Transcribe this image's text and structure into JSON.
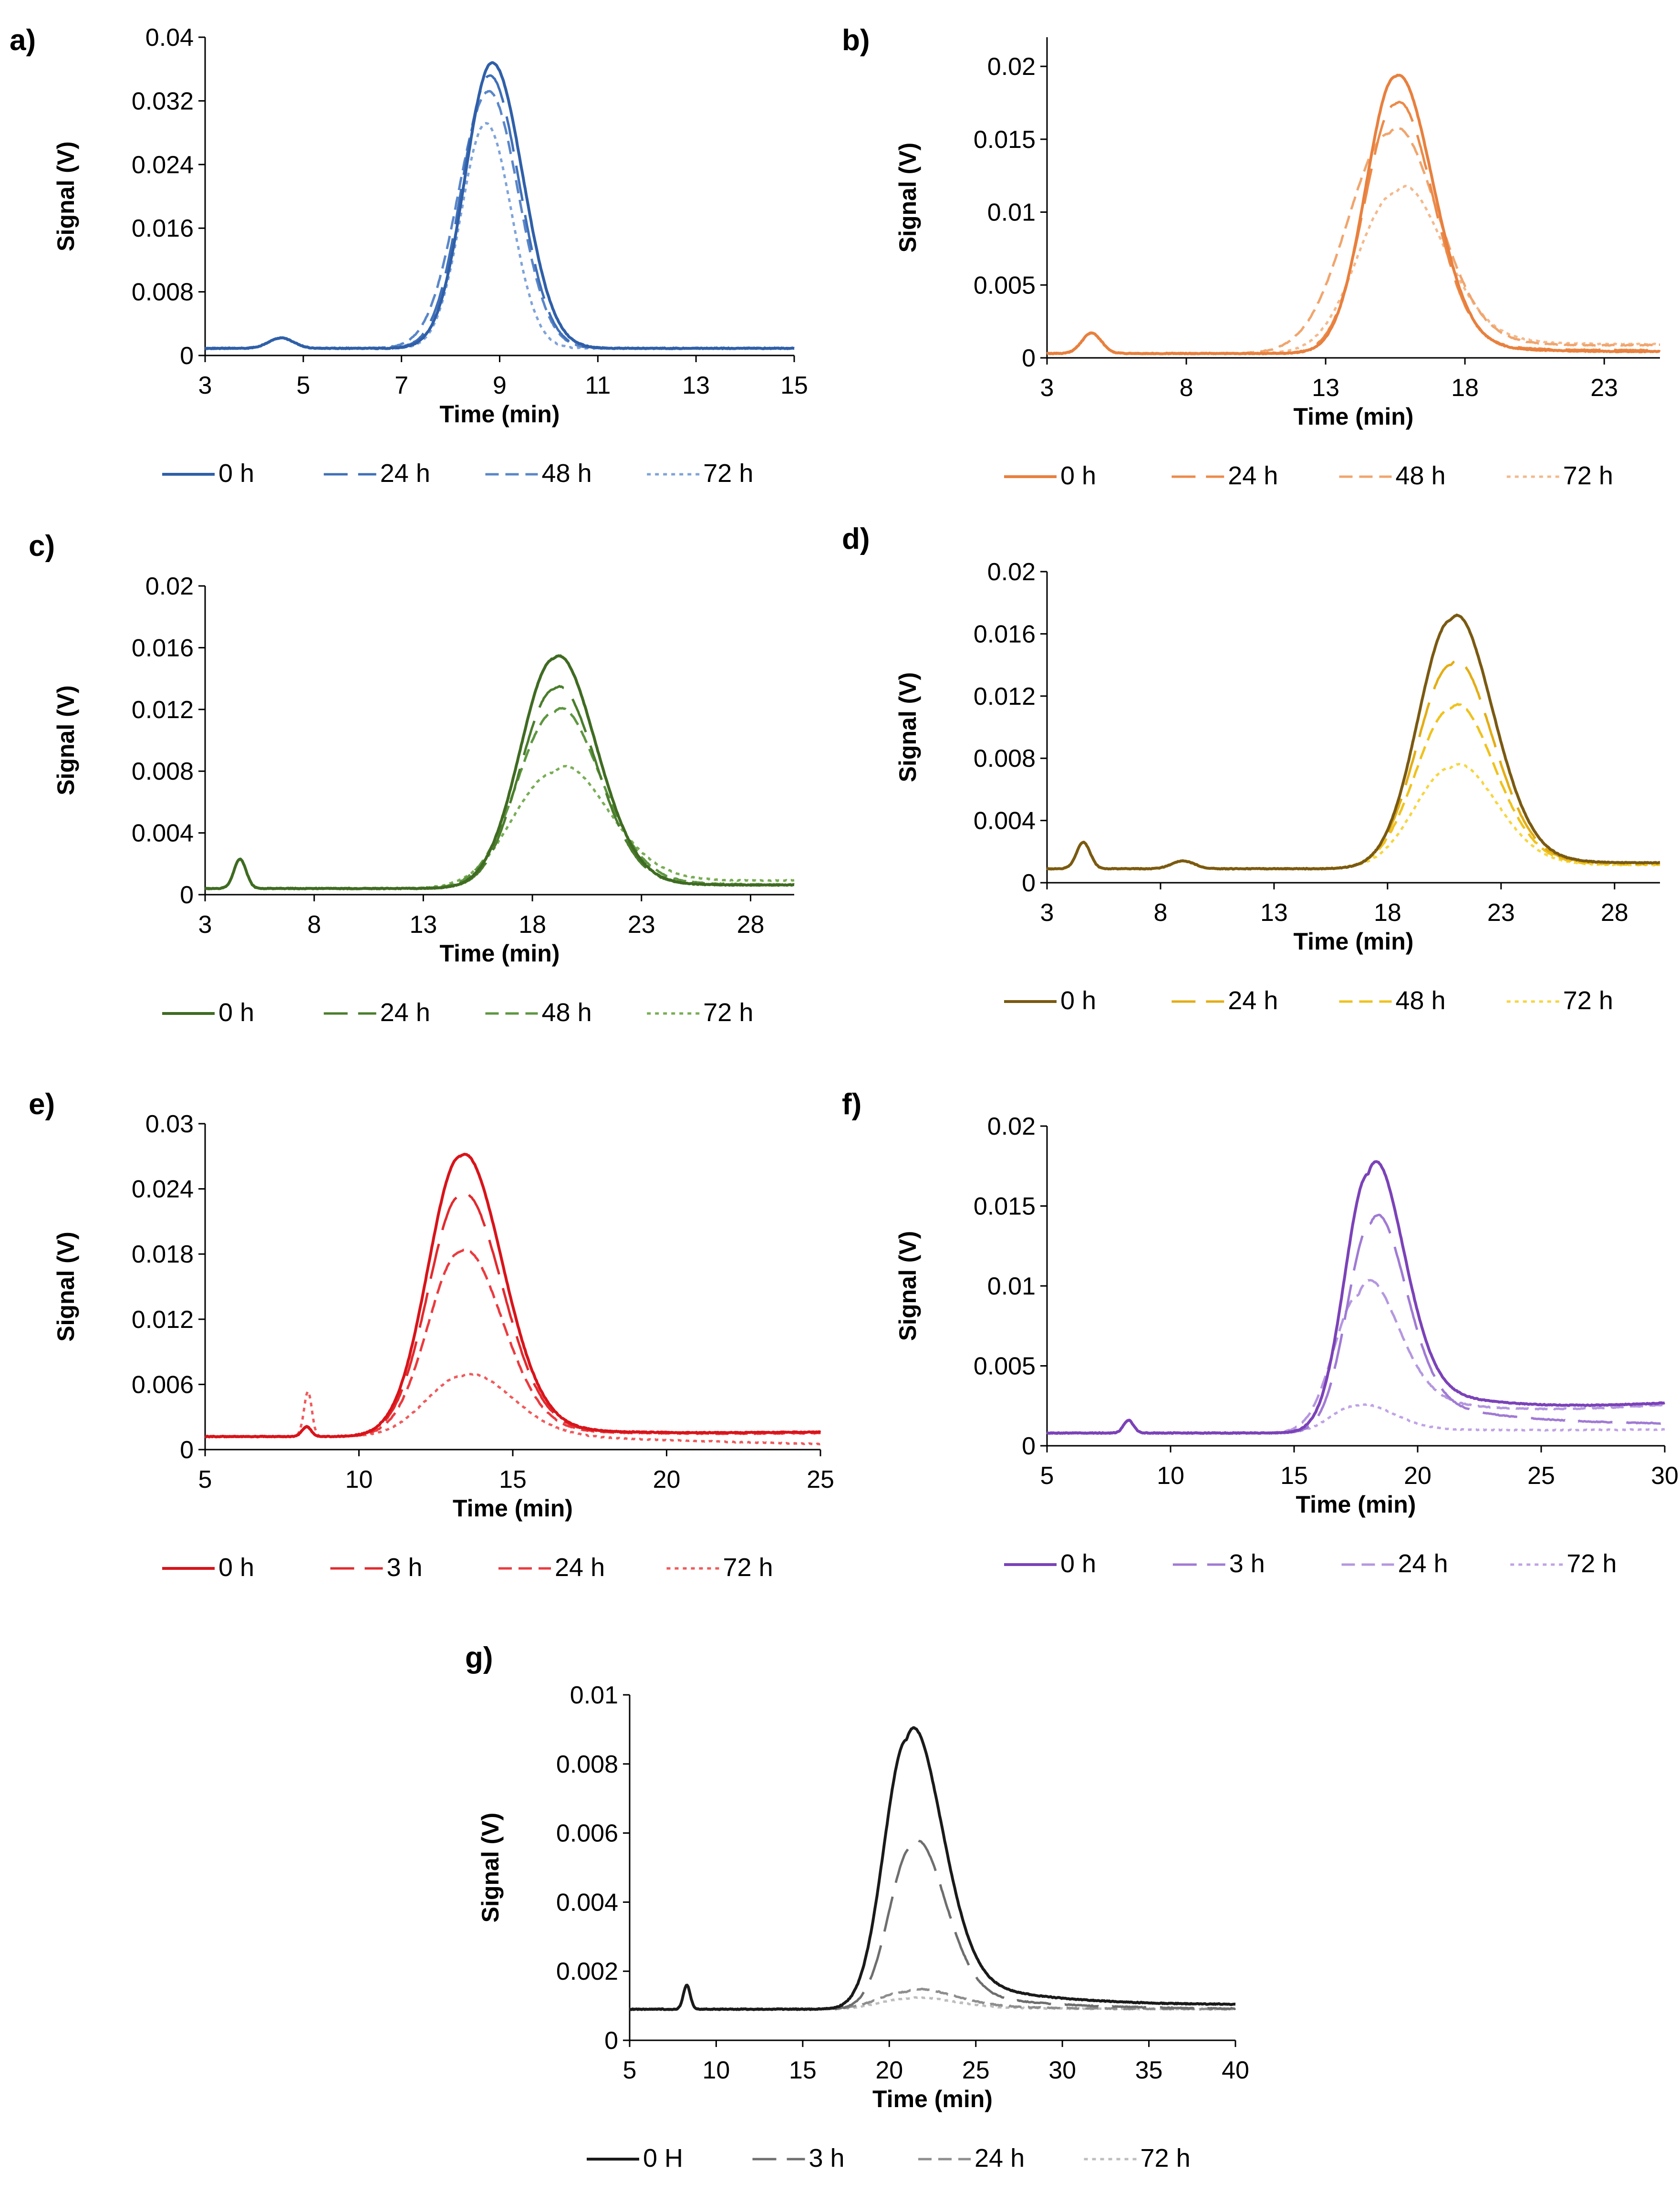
{
  "figure": {
    "panels": [
      {
        "id": "a",
        "label": "a)",
        "color_key": "blue"
      },
      {
        "id": "b",
        "label": "b)",
        "color_key": "orange"
      },
      {
        "id": "c",
        "label": "c)",
        "color_key": "green"
      },
      {
        "id": "d",
        "label": "d)",
        "color_key": "gold"
      },
      {
        "id": "e",
        "label": "e)",
        "color_key": "red"
      },
      {
        "id": "f",
        "label": "f)",
        "color_key": "purple"
      },
      {
        "id": "g",
        "label": "g)",
        "color_key": "gray"
      }
    ]
  },
  "colors": {
    "blue": [
      "#2f5fa8",
      "#3f6fb8",
      "#5a86c8",
      "#7fa3d8"
    ],
    "orange": [
      "#e8803e",
      "#ec8a48",
      "#f0a56e",
      "#f3b98c"
    ],
    "green": [
      "#3f6b22",
      "#4a7d2c",
      "#5d9640",
      "#78ad55"
    ],
    "gold": [
      "#7a5a12",
      "#e3ad14",
      "#efc21d",
      "#f5d640"
    ],
    "red": [
      "#d8141a",
      "#e22a2e",
      "#ea3b3f",
      "#f05a5c"
    ],
    "purple": [
      "#7b42b8",
      "#a07ad4",
      "#b597df",
      "#c0a3e6"
    ],
    "gray": [
      "#1a1a1a",
      "#6e6e6e",
      "#8e8e8e",
      "#bdbdbd"
    ]
  },
  "chart_data": [
    {
      "panel": "a",
      "type": "line",
      "title": "",
      "xlabel": "Time (min)",
      "ylabel": "Signal (V)",
      "xlim": [
        3,
        15
      ],
      "ylim": [
        0,
        0.04
      ],
      "xticks": [
        3,
        5,
        7,
        9,
        11,
        13,
        15
      ],
      "xtick_labels": [
        "3",
        "5",
        "7",
        "9",
        "11",
        "13",
        "15"
      ],
      "yticks": [
        0,
        0.008,
        0.016,
        0.024,
        0.032,
        0.04
      ],
      "ytick_labels": [
        "0",
        "0.008",
        "0.016",
        "0.024",
        "0.032",
        "0.04"
      ],
      "baseline": 0.0009,
      "bump": {
        "x": 4.55,
        "amp": 0.0013,
        "width": 0.25
      },
      "legend_position": "bottom",
      "series": [
        {
          "name": "0 h",
          "peak_x": 8.85,
          "peak": 0.0368,
          "sigma_left": 0.55,
          "sigma_right": 0.62,
          "tail_amp": 0,
          "tail_decay": 1,
          "end": 0.0009
        },
        {
          "name": "24 h",
          "peak_x": 8.8,
          "peak": 0.0352,
          "sigma_left": 0.56,
          "sigma_right": 0.6,
          "tail_amp": 0,
          "tail_decay": 1,
          "end": 0.0009
        },
        {
          "name": "48 h",
          "peak_x": 8.78,
          "peak": 0.0332,
          "sigma_left": 0.62,
          "sigma_right": 0.6,
          "tail_amp": 0,
          "tail_decay": 1,
          "end": 0.0009
        },
        {
          "name": "72 h",
          "peak_x": 8.72,
          "peak": 0.0292,
          "sigma_left": 0.5,
          "sigma_right": 0.52,
          "tail_amp": 0,
          "tail_decay": 1,
          "end": 0.0009
        }
      ]
    },
    {
      "panel": "b",
      "type": "line",
      "title": "",
      "xlabel": "Time (min)",
      "ylabel": "Signal (V)",
      "xlim": [
        3,
        25
      ],
      "ylim": [
        0,
        0.022
      ],
      "xticks": [
        3,
        8,
        13,
        18,
        23
      ],
      "xtick_labels": [
        "3",
        "8",
        "13",
        "18",
        "23"
      ],
      "yticks": [
        0,
        0.005,
        0.01,
        0.015,
        0.02
      ],
      "ytick_labels": [
        "0",
        "0.005",
        "0.01",
        "0.015",
        "0.02"
      ],
      "baseline": 0.0003,
      "bump": {
        "x": 4.6,
        "amp": 0.0014,
        "width": 0.35
      },
      "legend_position": "bottom",
      "series": [
        {
          "name": "0 h",
          "peak_x": 15.5,
          "peak": 0.0193,
          "sigma_left": 1.05,
          "sigma_right": 1.3,
          "tail_amp": 0.0014,
          "tail_decay": 2.5,
          "end": 0.0004
        },
        {
          "name": "24 h",
          "peak_x": 15.5,
          "peak": 0.0174,
          "sigma_left": 1.1,
          "sigma_right": 1.3,
          "tail_amp": 0.0016,
          "tail_decay": 2.5,
          "end": 0.0005
        },
        {
          "name": "48 h",
          "peak_x": 15.3,
          "peak": 0.0154,
          "sigma_left": 1.5,
          "sigma_right": 1.6,
          "tail_amp": 0.0022,
          "tail_decay": 3.0,
          "end": 0.0008
        },
        {
          "name": "72 h",
          "peak_x": 15.5,
          "peak": 0.0113,
          "sigma_left": 1.35,
          "sigma_right": 1.6,
          "tail_amp": 0.0022,
          "tail_decay": 3.5,
          "end": 0.0008
        }
      ]
    },
    {
      "panel": "c",
      "type": "line",
      "title": "",
      "xlabel": "Time (min)",
      "ylabel": "Signal (V)",
      "xlim": [
        3,
        30
      ],
      "ylim": [
        0,
        0.02
      ],
      "xticks": [
        3,
        8,
        13,
        18,
        23,
        28
      ],
      "xtick_labels": [
        "3",
        "8",
        "13",
        "18",
        "23",
        "28"
      ],
      "yticks": [
        0,
        0.004,
        0.008,
        0.012,
        0.016,
        0.02
      ],
      "ytick_labels": [
        "0",
        "0.004",
        "0.008",
        "0.012",
        "0.016",
        "0.02"
      ],
      "baseline": 0.0004,
      "bump": {
        "x": 4.6,
        "amp": 0.0019,
        "width": 0.28
      },
      "legend_position": "bottom",
      "series": [
        {
          "name": "0 h",
          "peak_x": 19.0,
          "peak": 0.0153,
          "sigma_left": 1.55,
          "sigma_right": 1.85,
          "tail_amp": 0.0012,
          "tail_decay": 3.0,
          "end": 0.0006
        },
        {
          "name": "24 h",
          "peak_x": 19.0,
          "peak": 0.0133,
          "sigma_left": 1.55,
          "sigma_right": 1.85,
          "tail_amp": 0.0012,
          "tail_decay": 3.0,
          "end": 0.0006
        },
        {
          "name": "48 h",
          "peak_x": 19.0,
          "peak": 0.0118,
          "sigma_left": 1.7,
          "sigma_right": 2.0,
          "tail_amp": 0.0014,
          "tail_decay": 3.5,
          "end": 0.0006
        },
        {
          "name": "72 h",
          "peak_x": 19.0,
          "peak": 0.0079,
          "sigma_left": 1.9,
          "sigma_right": 2.3,
          "tail_amp": 0.0014,
          "tail_decay": 4.5,
          "end": 0.0008
        }
      ]
    },
    {
      "panel": "d",
      "type": "line",
      "title": "",
      "xlabel": "Time (min)",
      "ylabel": "Signal (V)",
      "xlim": [
        3,
        30
      ],
      "ylim": [
        0,
        0.02
      ],
      "xticks": [
        3,
        8,
        13,
        18,
        23,
        28
      ],
      "xtick_labels": [
        "3",
        "8",
        "13",
        "18",
        "23",
        "28"
      ],
      "yticks": [
        0,
        0.004,
        0.008,
        0.012,
        0.016,
        0.02
      ],
      "ytick_labels": [
        "0",
        "0.004",
        "0.008",
        "0.012",
        "0.016",
        "0.02"
      ],
      "baseline": 0.0009,
      "bump": {
        "x": 4.6,
        "amp": 0.0017,
        "width": 0.3
      },
      "bump2": {
        "x": 9.0,
        "amp": 0.0005,
        "width": 0.5
      },
      "legend_position": "bottom",
      "series": [
        {
          "name": "0 h",
          "peak_x": 20.8,
          "peak": 0.0169,
          "sigma_left": 1.45,
          "sigma_right": 1.75,
          "tail_amp": 0.0018,
          "tail_decay": 3.0,
          "end": 0.0012
        },
        {
          "name": "24 h",
          "peak_x": 20.8,
          "peak": 0.014,
          "sigma_left": 1.5,
          "sigma_right": 1.75,
          "tail_amp": 0.0016,
          "tail_decay": 3.0,
          "end": 0.0012
        },
        {
          "name": "48 h",
          "peak_x": 20.8,
          "peak": 0.0112,
          "sigma_left": 1.55,
          "sigma_right": 1.8,
          "tail_amp": 0.0014,
          "tail_decay": 3.0,
          "end": 0.0011
        },
        {
          "name": "72 h",
          "peak_x": 20.8,
          "peak": 0.0074,
          "sigma_left": 1.6,
          "sigma_right": 1.9,
          "tail_amp": 0.001,
          "tail_decay": 3.0,
          "end": 0.0011
        }
      ]
    },
    {
      "panel": "e",
      "type": "line",
      "title": "",
      "xlabel": "Time (min)",
      "ylabel": "Signal (V)",
      "xlim": [
        5,
        25
      ],
      "ylim": [
        0,
        0.03
      ],
      "xticks": [
        5,
        10,
        15,
        20,
        25
      ],
      "xtick_labels": [
        "5",
        "10",
        "15",
        "20",
        "25"
      ],
      "yticks": [
        0,
        0.006,
        0.012,
        0.018,
        0.024,
        0.03
      ],
      "ytick_labels": [
        "0",
        "0.006",
        "0.012",
        "0.018",
        "0.024",
        "0.03"
      ],
      "baseline": 0.0012,
      "bump": {
        "x": 8.3,
        "amp": 0.0009,
        "width": 0.15
      },
      "spike": {
        "series": "72 h",
        "x": 8.35,
        "amp": 0.0033,
        "width": 0.12
      },
      "legend_position": "bottom",
      "series": [
        {
          "name": "0 h",
          "peak_x": 13.3,
          "peak": 0.027,
          "sigma_left": 1.05,
          "sigma_right": 1.3,
          "tail_amp": 0.0022,
          "tail_decay": 2.5,
          "end": 0.0016
        },
        {
          "name": "3 h",
          "peak_x": 13.3,
          "peak": 0.0234,
          "sigma_left": 1.05,
          "sigma_right": 1.3,
          "tail_amp": 0.002,
          "tail_decay": 2.5,
          "end": 0.0016
        },
        {
          "name": "24 h",
          "peak_x": 13.3,
          "peak": 0.0182,
          "sigma_left": 1.05,
          "sigma_right": 1.3,
          "tail_amp": 0.0018,
          "tail_decay": 2.5,
          "end": 0.0015
        },
        {
          "name": "72 h",
          "peak_x": 13.4,
          "peak": 0.0068,
          "sigma_left": 1.2,
          "sigma_right": 1.5,
          "tail_amp": 0.001,
          "tail_decay": 2.5,
          "end": 0.0005
        }
      ]
    },
    {
      "panel": "f",
      "type": "line",
      "title": "",
      "xlabel": "Time (min)",
      "ylabel": "Signal (V)",
      "xlim": [
        5,
        30
      ],
      "ylim": [
        0,
        0.02
      ],
      "xticks": [
        5,
        10,
        15,
        20,
        25,
        30
      ],
      "xtick_labels": [
        "5",
        "10",
        "15",
        "20",
        "25",
        "30"
      ],
      "yticks": [
        0,
        0.005,
        0.01,
        0.015,
        0.02
      ],
      "ytick_labels": [
        "0",
        "0.005",
        "0.01",
        "0.015",
        "0.02"
      ],
      "baseline": 0.0008,
      "bump": {
        "x": 8.3,
        "amp": 0.0008,
        "width": 0.2
      },
      "legend_position": "bottom",
      "series": [
        {
          "name": "0 h",
          "peak_x": 18.0,
          "peak": 0.017,
          "sigma_left": 0.95,
          "sigma_right": 1.3,
          "tail_amp": 0.004,
          "tail_decay": 4.5,
          "end": 0.0024
        },
        {
          "name": "3 h",
          "peak_x": 18.1,
          "peak": 0.0139,
          "sigma_left": 0.95,
          "sigma_right": 1.3,
          "tail_amp": 0.003,
          "tail_decay": 4.5,
          "end": 0.0012
        },
        {
          "name": "24 h",
          "peak_x": 17.6,
          "peak": 0.0094,
          "sigma_left": 1.0,
          "sigma_right": 1.4,
          "tail_amp": 0.0035,
          "tail_decay": 4.0,
          "end": 0.0024
        },
        {
          "name": "72 h",
          "peak_x": 17.5,
          "peak": 0.0025,
          "sigma_left": 1.0,
          "sigma_right": 1.4,
          "tail_amp": 0.0004,
          "tail_decay": 4.0,
          "end": 0.001
        }
      ]
    },
    {
      "panel": "g",
      "type": "line",
      "title": "",
      "xlabel": "Time (min)",
      "ylabel": "Signal (V)",
      "xlim": [
        5,
        40
      ],
      "ylim": [
        0,
        0.01
      ],
      "xticks": [
        5,
        10,
        15,
        20,
        25,
        30,
        35,
        40
      ],
      "xtick_labels": [
        "5",
        "10",
        "15",
        "20",
        "25",
        "30",
        "35",
        "40"
      ],
      "yticks": [
        0,
        0.002,
        0.004,
        0.006,
        0.008,
        0.01
      ],
      "ytick_labels": [
        "0",
        "0.002",
        "0.004",
        "0.006",
        "0.008",
        "0.01"
      ],
      "baseline": 0.0009,
      "bump": {
        "x": 8.3,
        "amp": 0.0007,
        "width": 0.2
      },
      "legend_position": "bottom",
      "series": [
        {
          "name": "0 H",
          "peak_x": 21.0,
          "peak": 0.0087,
          "sigma_left": 1.3,
          "sigma_right": 1.9,
          "tail_amp": 0.0014,
          "tail_decay": 5.5,
          "end": 0.001
        },
        {
          "name": "3 h",
          "peak_x": 21.3,
          "peak": 0.0056,
          "sigma_left": 1.3,
          "sigma_right": 1.8,
          "tail_amp": 0.0008,
          "tail_decay": 5.0,
          "end": 0.0009
        },
        {
          "name": "24 h",
          "peak_x": 21.0,
          "peak": 0.0014,
          "sigma_left": 1.6,
          "sigma_right": 2.5,
          "tail_amp": 0.0002,
          "tail_decay": 5.0,
          "end": 0.0009
        },
        {
          "name": "72 h",
          "peak_x": 21.0,
          "peak": 0.0012,
          "sigma_left": 1.6,
          "sigma_right": 2.5,
          "tail_amp": 0.0001,
          "tail_decay": 5.0,
          "end": 0.0009
        }
      ]
    }
  ]
}
